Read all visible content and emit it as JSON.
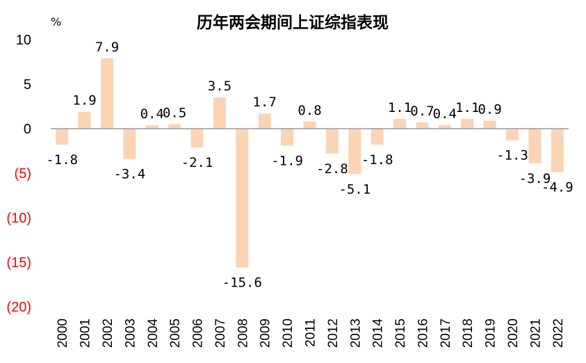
{
  "chart_data": {
    "type": "bar",
    "title": "历年两会期间上证综指表现",
    "unit_label": "%",
    "categories": [
      "2000",
      "2001",
      "2002",
      "2003",
      "2004",
      "2005",
      "2006",
      "2007",
      "2008",
      "2009",
      "2010",
      "2011",
      "2012",
      "2013",
      "2014",
      "2015",
      "2016",
      "2017",
      "2018",
      "2019",
      "2020",
      "2021",
      "2022"
    ],
    "values": [
      -1.8,
      1.9,
      7.9,
      -3.4,
      0.4,
      0.5,
      -2.1,
      3.5,
      -15.6,
      1.7,
      -1.9,
      0.8,
      -2.8,
      -5.1,
      -1.8,
      1.1,
      0.7,
      0.4,
      1.1,
      0.9,
      -1.3,
      -3.9,
      -4.9
    ],
    "data_labels": [
      "-1.8",
      "1.9",
      "7.9",
      "-3.4",
      "0.4",
      "0.5",
      "-2.1",
      "3.5",
      "-15.6",
      "1.7",
      "-1.9",
      "0.8",
      "-2.8",
      "-5.1",
      "-1.8",
      "1.1",
      "0.7",
      "0.4",
      "1.1",
      "0.9",
      "-1.3",
      "-3.9",
      "-4.9"
    ],
    "y_ticks": [
      {
        "value": 10,
        "label": "10"
      },
      {
        "value": 5,
        "label": "5"
      },
      {
        "value": 0,
        "label": "0"
      },
      {
        "value": -5,
        "label": "(5)"
      },
      {
        "value": -10,
        "label": "(10)"
      },
      {
        "value": -15,
        "label": "(15)"
      },
      {
        "value": -20,
        "label": "(20)"
      }
    ],
    "ylim": [
      -20,
      10
    ],
    "grid": false,
    "legend": "none",
    "colors": {
      "bar": "#FBD4B4",
      "axis": "#999999",
      "positive_tick": "#000000",
      "negative_tick": "#FF0000"
    }
  }
}
